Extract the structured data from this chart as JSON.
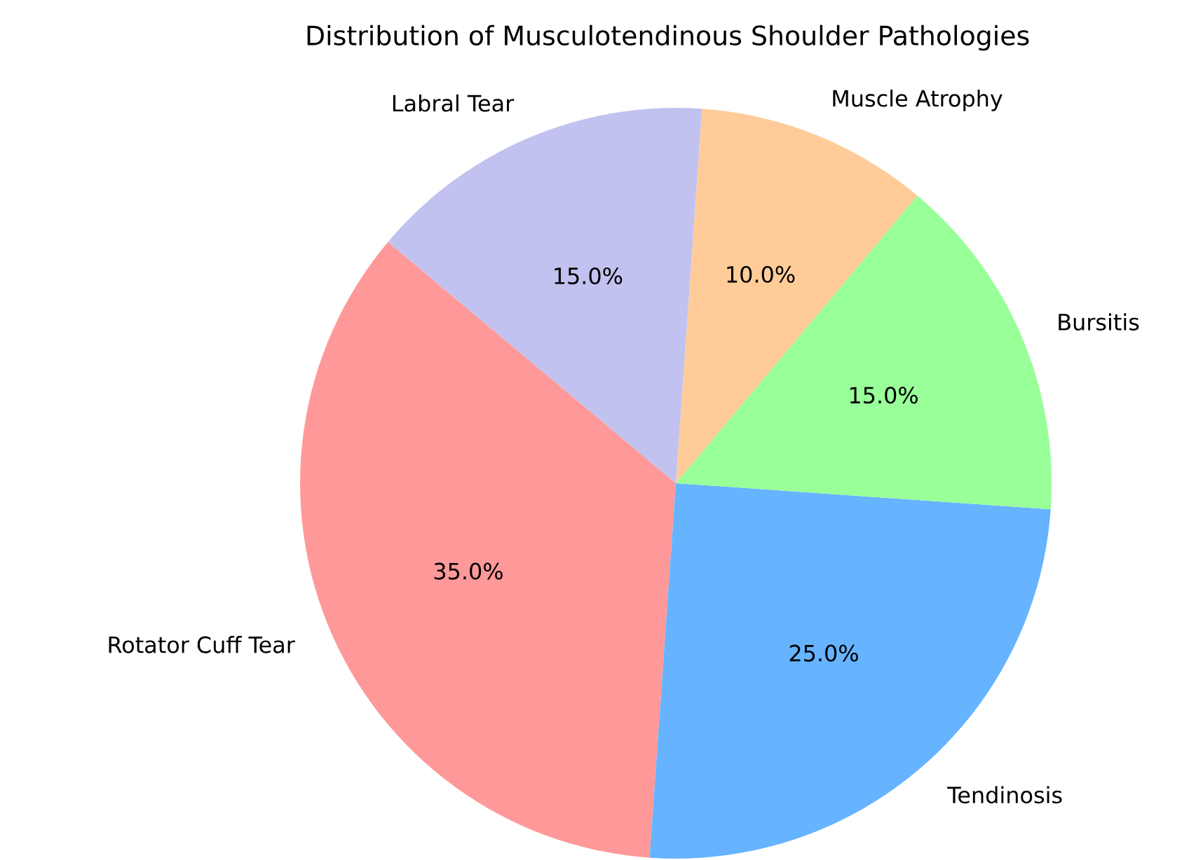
{
  "chart_data": {
    "type": "pie",
    "title": "Distribution of Musculotendinous Shoulder Pathologies",
    "categories": [
      "Rotator Cuff Tear",
      "Tendinosis",
      "Bursitis",
      "Muscle Atrophy",
      "Labral Tear"
    ],
    "values": [
      35,
      25,
      15,
      10,
      15
    ],
    "value_labels": [
      "35.0%",
      "25.0%",
      "15.0%",
      "10.0%",
      "15.0%"
    ],
    "colors": [
      "#ff9999",
      "#66b3ff",
      "#99ff99",
      "#ffcc99",
      "#c2c2f0"
    ]
  }
}
